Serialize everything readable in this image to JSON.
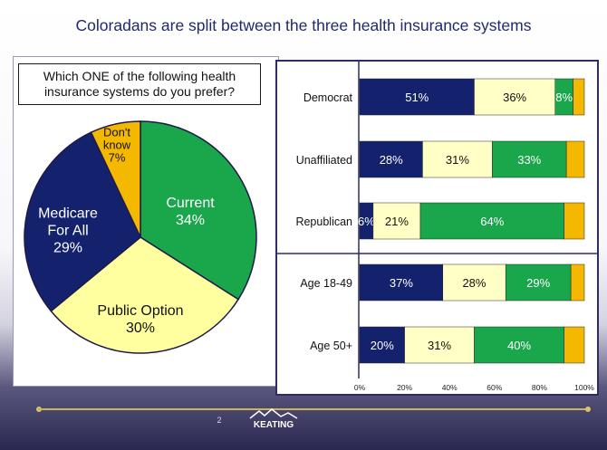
{
  "slide": {
    "title": "Coloradans are split between the three health insurance systems",
    "question": "Which ONE of the following health insurance systems do you prefer?",
    "page_number": "2",
    "logo_text": "KEATING"
  },
  "colors": {
    "medicare": "#14226e",
    "public": "#ffffc6",
    "current": "#1aa64a",
    "dont_know": "#f5b800"
  },
  "chart_data": [
    {
      "type": "pie",
      "slices": [
        {
          "name": "Current",
          "value": 34,
          "label_lines": [
            "Current",
            "34%"
          ],
          "color": "#1aa64a",
          "text_color": "#ffffff"
        },
        {
          "name": "Public Option",
          "value": 30,
          "label_lines": [
            "Public Option",
            "30%"
          ],
          "color": "#ffffa0",
          "text_color": "#111111"
        },
        {
          "name": "Medicare For All",
          "value": 29,
          "label_lines": [
            "Medicare",
            "For All",
            "29%"
          ],
          "color": "#14226e",
          "text_color": "#ffffff"
        },
        {
          "name": "Don't know",
          "value": 7,
          "label_lines": [
            "Don't",
            "know",
            "7%"
          ],
          "color": "#f5b800",
          "text_color": "#111111"
        }
      ]
    },
    {
      "type": "bar",
      "orientation": "horizontal",
      "stacked": true,
      "xlim": [
        0,
        100
      ],
      "xticks": [
        "0%",
        "20%",
        "40%",
        "60%",
        "80%",
        "100%"
      ],
      "categories": [
        "Democrat",
        "Unaffiliated",
        "Republican",
        "Age 18-49",
        "Age 50+"
      ],
      "series": [
        {
          "key": "medicare",
          "values": [
            51,
            28,
            6,
            37,
            20
          ],
          "labels": [
            "51%",
            "28%",
            "6%",
            "37%",
            "20%"
          ],
          "color": "#14226e",
          "text_color": "#ffffff"
        },
        {
          "key": "public",
          "values": [
            36,
            31,
            21,
            28,
            31
          ],
          "labels": [
            "36%",
            "31%",
            "21%",
            "28%",
            "31%"
          ],
          "color": "#ffffc6",
          "text_color": "#111111"
        },
        {
          "key": "current",
          "values": [
            8,
            33,
            64,
            29,
            40
          ],
          "labels": [
            "8%",
            "33%",
            "64%",
            "29%",
            "40%"
          ],
          "color": "#1aa64a",
          "text_color": "#ffffff"
        },
        {
          "key": "dont_know",
          "values": [
            5,
            8,
            9,
            6,
            9
          ],
          "labels": [
            "",
            "",
            "",
            "",
            ""
          ],
          "color": "#f5b800",
          "text_color": "#111111"
        }
      ]
    }
  ]
}
